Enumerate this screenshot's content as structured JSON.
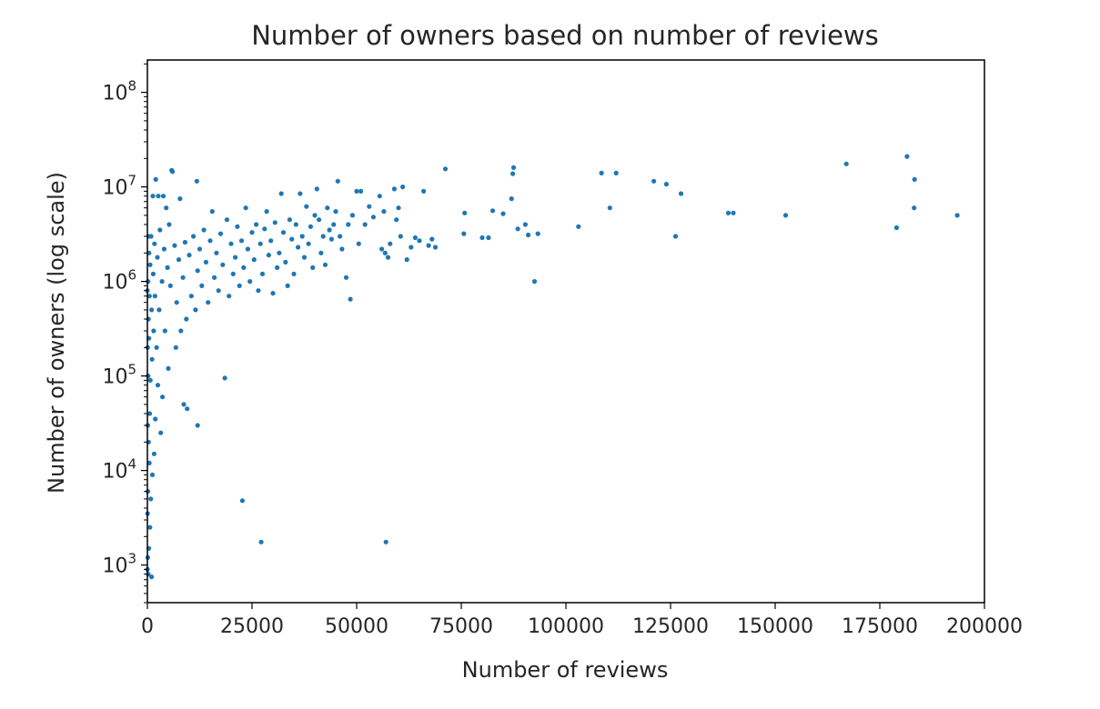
{
  "chart_data": {
    "type": "scatter",
    "title": "Number of owners based on number of reviews",
    "xlabel": "Number of reviews",
    "ylabel": "Number of owners (log scale)",
    "xlim": [
      0,
      200000
    ],
    "ylim": [
      400,
      220000000
    ],
    "yscale": "log",
    "grid": false,
    "legend": "none",
    "marker_color": "#1f77b4",
    "xticks": [
      0,
      25000,
      50000,
      75000,
      100000,
      125000,
      150000,
      175000,
      200000
    ],
    "xtick_labels": [
      "0",
      "25000",
      "50000",
      "75000",
      "100000",
      "125000",
      "150000",
      "175000",
      "200000"
    ],
    "yticks": [
      1000,
      10000,
      100000,
      1000000,
      10000000,
      100000000
    ],
    "ytick_labels": [
      {
        "base": "10",
        "exp": "3"
      },
      {
        "base": "10",
        "exp": "4"
      },
      {
        "base": "10",
        "exp": "5"
      },
      {
        "base": "10",
        "exp": "6"
      },
      {
        "base": "10",
        "exp": "7"
      },
      {
        "base": "10",
        "exp": "8"
      }
    ],
    "series": [
      {
        "points": [
          [
            193500,
            5000000
          ],
          [
            183300,
            12000000
          ],
          [
            183200,
            6000000
          ],
          [
            181500,
            21000000
          ],
          [
            179000,
            3700000
          ],
          [
            167000,
            17500000
          ],
          [
            152500,
            5000000
          ],
          [
            140000,
            5300000
          ],
          [
            138800,
            5300000
          ],
          [
            127500,
            8500000
          ],
          [
            126200,
            3000000
          ],
          [
            124000,
            10700000
          ],
          [
            121000,
            11500000
          ],
          [
            112000,
            14000000
          ],
          [
            110500,
            6000000
          ],
          [
            108500,
            14000000
          ],
          [
            103000,
            3800000
          ],
          [
            93300,
            3200000
          ],
          [
            92500,
            1000000
          ],
          [
            91000,
            3100000
          ],
          [
            90300,
            4000000
          ],
          [
            88500,
            3600000
          ],
          [
            87500,
            16000000
          ],
          [
            87300,
            13800000
          ],
          [
            87000,
            7500000
          ],
          [
            85000,
            5200000
          ],
          [
            82500,
            5600000
          ],
          [
            81500,
            2900000
          ],
          [
            80000,
            2900000
          ],
          [
            75800,
            5300000
          ],
          [
            75600,
            3200000
          ],
          [
            71200,
            15500000
          ],
          [
            68800,
            2300000
          ],
          [
            68000,
            2800000
          ],
          [
            67200,
            2400000
          ],
          [
            66000,
            9000000
          ],
          [
            65000,
            2700000
          ],
          [
            64000,
            2900000
          ],
          [
            63000,
            2300000
          ],
          [
            62000,
            1700000
          ],
          [
            61000,
            10000000
          ],
          [
            60500,
            3000000
          ],
          [
            60000,
            6000000
          ],
          [
            59500,
            4500000
          ],
          [
            59000,
            9500000
          ],
          [
            58000,
            2500000
          ],
          [
            57500,
            1800000
          ],
          [
            57000,
            1750
          ],
          [
            56800,
            2000000
          ],
          [
            56500,
            5500000
          ],
          [
            56000,
            2200000
          ],
          [
            55500,
            8000000
          ],
          [
            54000,
            4800000
          ],
          [
            53000,
            6200000
          ],
          [
            52000,
            4000000
          ],
          [
            51000,
            9000000
          ],
          [
            50500,
            2500000
          ],
          [
            50000,
            9000000
          ],
          [
            49000,
            5000000
          ],
          [
            48500,
            650000
          ],
          [
            48000,
            4000000
          ],
          [
            47500,
            1100000
          ],
          [
            46500,
            2200000
          ],
          [
            46000,
            3000000
          ],
          [
            45500,
            11500000
          ],
          [
            45000,
            5500000
          ],
          [
            44500,
            4000000
          ],
          [
            44000,
            2800000
          ],
          [
            43500,
            3500000
          ],
          [
            43000,
            6000000
          ],
          [
            42500,
            1500000
          ],
          [
            42000,
            3000000
          ],
          [
            41500,
            2000000
          ],
          [
            41000,
            4500000
          ],
          [
            40500,
            9500000
          ],
          [
            40000,
            5000000
          ],
          [
            39500,
            1400000
          ],
          [
            39000,
            3800000
          ],
          [
            38500,
            2500000
          ],
          [
            38000,
            6200000
          ],
          [
            37500,
            1800000
          ],
          [
            37000,
            3000000
          ],
          [
            36500,
            8500000
          ],
          [
            36000,
            2300000
          ],
          [
            35500,
            4000000
          ],
          [
            35000,
            1200000
          ],
          [
            34500,
            2800000
          ],
          [
            34000,
            4500000
          ],
          [
            33500,
            900000
          ],
          [
            33000,
            1600000
          ],
          [
            32500,
            3300000
          ],
          [
            32000,
            8500000
          ],
          [
            31500,
            2000000
          ],
          [
            31000,
            1400000
          ],
          [
            30500,
            4200000
          ],
          [
            30000,
            750000
          ],
          [
            29500,
            2700000
          ],
          [
            29000,
            1900000
          ],
          [
            28500,
            5500000
          ],
          [
            28000,
            3600000
          ],
          [
            27500,
            1200000
          ],
          [
            27200,
            1750
          ],
          [
            27000,
            2500000
          ],
          [
            26500,
            800000
          ],
          [
            26000,
            4000000
          ],
          [
            25500,
            1700000
          ],
          [
            25000,
            3300000
          ],
          [
            24500,
            1000000
          ],
          [
            24000,
            2200000
          ],
          [
            23500,
            6000000
          ],
          [
            23000,
            1400000
          ],
          [
            22700,
            4800
          ],
          [
            22500,
            2700000
          ],
          [
            22000,
            900000
          ],
          [
            21500,
            3800000
          ],
          [
            21000,
            1800000
          ],
          [
            20500,
            1200000
          ],
          [
            20000,
            2500000
          ],
          [
            19500,
            700000
          ],
          [
            19000,
            4500000
          ],
          [
            18500,
            95000
          ],
          [
            18000,
            1500000
          ],
          [
            17500,
            3200000
          ],
          [
            17000,
            800000
          ],
          [
            16500,
            2000000
          ],
          [
            16000,
            1100000
          ],
          [
            15500,
            5500000
          ],
          [
            15000,
            2700000
          ],
          [
            14500,
            600000
          ],
          [
            14000,
            1600000
          ],
          [
            13500,
            3500000
          ],
          [
            13000,
            900000
          ],
          [
            12500,
            2200000
          ],
          [
            12000,
            30000
          ],
          [
            12000,
            1300000
          ],
          [
            11800,
            11500000
          ],
          [
            11500,
            500000
          ],
          [
            11000,
            3000000
          ],
          [
            10500,
            700000
          ],
          [
            10000,
            1900000
          ],
          [
            9500,
            45000
          ],
          [
            9300,
            400000
          ],
          [
            9000,
            2600000
          ],
          [
            8700,
            50000
          ],
          [
            8500,
            1100000
          ],
          [
            8000,
            300000
          ],
          [
            7800,
            7500000
          ],
          [
            7500,
            1700000
          ],
          [
            7000,
            600000
          ],
          [
            6800,
            200000
          ],
          [
            6500,
            2400000
          ],
          [
            6000,
            14500000
          ],
          [
            5800,
            15000000
          ],
          [
            5500,
            900000
          ],
          [
            5200,
            4000000
          ],
          [
            5000,
            120000
          ],
          [
            4800,
            1400000
          ],
          [
            4500,
            6000000
          ],
          [
            4200,
            300000
          ],
          [
            4000,
            2200000
          ],
          [
            3800,
            8000000
          ],
          [
            3600,
            60000
          ],
          [
            3500,
            1000000
          ],
          [
            3200,
            25000
          ],
          [
            3000,
            3500000
          ],
          [
            2800,
            500000
          ],
          [
            2600,
            8000000
          ],
          [
            2500,
            80000
          ],
          [
            2400,
            1800000
          ],
          [
            2200,
            200000
          ],
          [
            2000,
            12000000
          ],
          [
            1900,
            35000
          ],
          [
            1800,
            700000
          ],
          [
            1700,
            2500000
          ],
          [
            1600,
            15000
          ],
          [
            1500,
            300000
          ],
          [
            1400,
            1200000
          ],
          [
            1300,
            8000000
          ],
          [
            1200,
            9000
          ],
          [
            1100,
            150000
          ],
          [
            1000,
            750
          ],
          [
            1000,
            500000
          ],
          [
            900,
            3000000
          ],
          [
            800,
            5000
          ],
          [
            700,
            90000
          ],
          [
            650,
            1500000
          ],
          [
            600,
            2500
          ],
          [
            550,
            40000
          ],
          [
            500,
            700000
          ],
          [
            450,
            12000
          ],
          [
            400,
            2000000
          ],
          [
            380,
            250000
          ],
          [
            350,
            1500
          ],
          [
            300,
            3000000
          ],
          [
            280,
            20000
          ],
          [
            250,
            400000
          ],
          [
            200,
            800
          ],
          [
            180,
            100000
          ],
          [
            150,
            1000000
          ],
          [
            120,
            6000
          ],
          [
            100,
            30000
          ],
          [
            80,
            1200
          ],
          [
            60,
            200000
          ],
          [
            40,
            3500
          ],
          [
            20,
            900
          ],
          [
            10,
            800000
          ]
        ]
      }
    ]
  }
}
